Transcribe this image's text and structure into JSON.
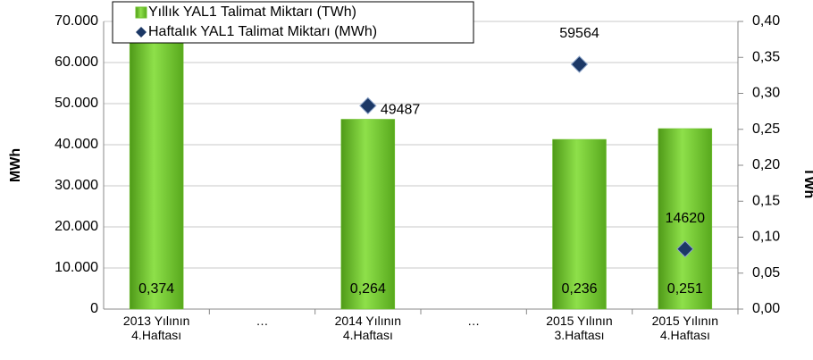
{
  "chart_data": {
    "type": "bar-scatter",
    "categories": [
      "2013 Yılının\n4.Haftası",
      "…",
      "2014 Yılının\n4.Haftası",
      "…",
      "2015 Yılının\n3.Haftası",
      "2015 Yılının\n4.Haftası"
    ],
    "ylabel": "MWh",
    "y2label": "TWh",
    "ylim": [
      0,
      70000
    ],
    "yticks": [
      0,
      {
        "value": 10000,
        "label": "10.000"
      },
      {
        "value": 20000,
        "label": "20.000"
      },
      {
        "value": 30000,
        "label": "30.000"
      },
      {
        "value": 40000,
        "label": "40.000"
      },
      {
        "value": 50000,
        "label": "50.000"
      },
      {
        "value": 60000,
        "label": "60.000"
      },
      {
        "value": 70000,
        "label": "70.000"
      }
    ],
    "y2lim": [
      0,
      0.4
    ],
    "y2ticks": [
      {
        "value": 0,
        "label": "0,00"
      },
      {
        "value": 0.05,
        "label": "0,05"
      },
      {
        "value": 0.1,
        "label": "0,10"
      },
      {
        "value": 0.15,
        "label": "0,15"
      },
      {
        "value": 0.2,
        "label": "0,20"
      },
      {
        "value": 0.25,
        "label": "0,25"
      },
      {
        "value": 0.3,
        "label": "0,30"
      },
      {
        "value": 0.35,
        "label": "0,35"
      },
      {
        "value": 0.4,
        "label": "0,40"
      }
    ],
    "grid": true,
    "series": [
      {
        "name": "Yıllık YAL1 Talimat Miktarı (TWh)",
        "type": "bar",
        "axis": "y2",
        "color": "#6cc12a",
        "values": [
          0.374,
          null,
          0.264,
          null,
          0.236,
          0.251
        ],
        "value_labels": [
          "0,374",
          null,
          "0,264",
          null,
          "0,236",
          "0,251"
        ]
      },
      {
        "name": "Haftalık YAL1 Talimat Miktarı (MWh)",
        "type": "scatter",
        "color": "#1c3866",
        "values": [
          null,
          null,
          49487,
          null,
          59564,
          14620
        ]
      }
    ]
  }
}
